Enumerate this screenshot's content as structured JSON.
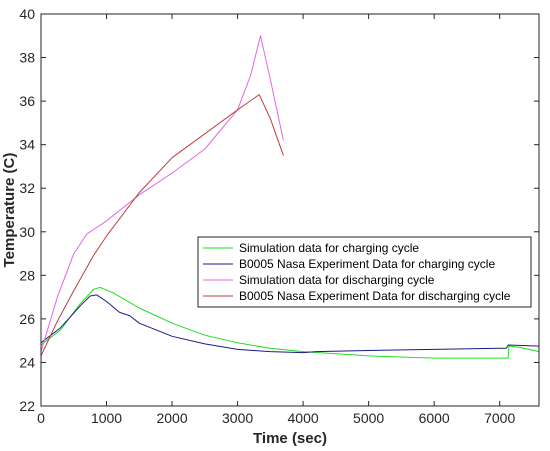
{
  "chart_data": {
    "type": "line",
    "title": "",
    "xlabel": "Time (sec)",
    "ylabel": "Temperature (C)",
    "xlim": [
      0,
      7600
    ],
    "ylim": [
      22,
      40
    ],
    "xticks": [
      0,
      1000,
      2000,
      3000,
      4000,
      5000,
      6000,
      7000
    ],
    "yticks": [
      22,
      24,
      26,
      28,
      30,
      32,
      34,
      36,
      38,
      40
    ],
    "grid": false,
    "legend_position": "center-right",
    "series": [
      {
        "name": "Simulation data for charging cycle",
        "color": "#22dd22",
        "points": [
          [
            0,
            24.8
          ],
          [
            300,
            25.5
          ],
          [
            600,
            26.7
          ],
          [
            800,
            27.35
          ],
          [
            900,
            27.45
          ],
          [
            1100,
            27.2
          ],
          [
            1500,
            26.5
          ],
          [
            2000,
            25.8
          ],
          [
            2500,
            25.25
          ],
          [
            3000,
            24.9
          ],
          [
            3500,
            24.65
          ],
          [
            4000,
            24.5
          ],
          [
            4500,
            24.4
          ],
          [
            5000,
            24.3
          ],
          [
            6000,
            24.2
          ],
          [
            7000,
            24.2
          ],
          [
            7130,
            24.2
          ],
          [
            7140,
            24.75
          ],
          [
            7300,
            24.7
          ],
          [
            7600,
            24.5
          ]
        ]
      },
      {
        "name": "B0005 Nasa Experiment Data for charging cycle",
        "color": "#1a1a8c",
        "points": [
          [
            0,
            24.9
          ],
          [
            300,
            25.6
          ],
          [
            600,
            26.6
          ],
          [
            750,
            27.05
          ],
          [
            850,
            27.1
          ],
          [
            1000,
            26.8
          ],
          [
            1200,
            26.3
          ],
          [
            1350,
            26.15
          ],
          [
            1500,
            25.8
          ],
          [
            2000,
            25.2
          ],
          [
            2500,
            24.85
          ],
          [
            3000,
            24.6
          ],
          [
            3500,
            24.5
          ],
          [
            4000,
            24.45
          ],
          [
            4200,
            24.5
          ],
          [
            5000,
            24.55
          ],
          [
            6000,
            24.6
          ],
          [
            7000,
            24.65
          ],
          [
            7100,
            24.65
          ],
          [
            7130,
            24.8
          ],
          [
            7600,
            24.75
          ]
        ]
      },
      {
        "name": "Simulation data for discharging cycle",
        "color": "#e066e0",
        "points": [
          [
            0,
            24.5
          ],
          [
            250,
            27.0
          ],
          [
            500,
            29.0
          ],
          [
            700,
            29.9
          ],
          [
            1000,
            30.5
          ],
          [
            1500,
            31.7
          ],
          [
            2000,
            32.7
          ],
          [
            2500,
            33.8
          ],
          [
            3000,
            35.6
          ],
          [
            3200,
            37.2
          ],
          [
            3350,
            39.0
          ],
          [
            3500,
            37.0
          ],
          [
            3700,
            34.2
          ]
        ]
      },
      {
        "name": "B0005 Nasa Experiment Data for discharging cycle",
        "color": "#b84040",
        "points": [
          [
            0,
            24.3
          ],
          [
            250,
            25.9
          ],
          [
            500,
            27.3
          ],
          [
            800,
            28.9
          ],
          [
            1000,
            29.8
          ],
          [
            1500,
            31.8
          ],
          [
            2000,
            33.4
          ],
          [
            2500,
            34.5
          ],
          [
            3000,
            35.6
          ],
          [
            3330,
            36.3
          ],
          [
            3500,
            35.2
          ],
          [
            3700,
            33.5
          ]
        ]
      }
    ]
  }
}
